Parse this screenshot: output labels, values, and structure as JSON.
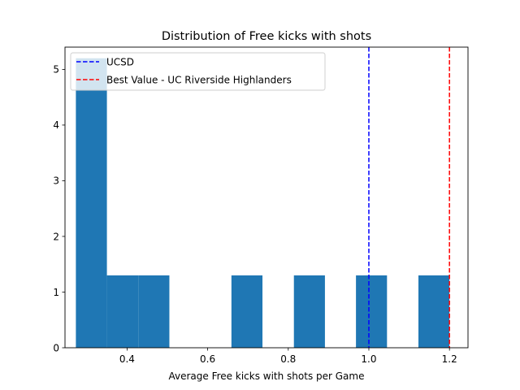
{
  "chart_data": {
    "type": "bar",
    "title": "Distribution of Free kicks with shots",
    "xlabel": "Average Free kicks with shots per Game",
    "ylabel": "",
    "xlim": [
      0.246,
      1.246
    ],
    "ylim": [
      0,
      5.4
    ],
    "xticks": [
      0.4,
      0.6,
      0.8,
      1.0,
      1.2
    ],
    "xtick_labels": [
      "0.4",
      "0.6",
      "0.8",
      "1.0",
      "1.2"
    ],
    "yticks": [
      0,
      1,
      2,
      3,
      4,
      5
    ],
    "ytick_labels": [
      "0",
      "1",
      "2",
      "3",
      "4",
      "5"
    ],
    "bar_color": "#1f77b4",
    "bins": [
      {
        "x0": 0.273,
        "x1": 0.35,
        "count": 5.2
      },
      {
        "x0": 0.35,
        "x1": 0.428,
        "count": 1.3
      },
      {
        "x0": 0.428,
        "x1": 0.505,
        "count": 1.3
      },
      {
        "x0": 0.505,
        "x1": 0.582,
        "count": 0
      },
      {
        "x0": 0.582,
        "x1": 0.659,
        "count": 0
      },
      {
        "x0": 0.659,
        "x1": 0.736,
        "count": 1.3
      },
      {
        "x0": 0.736,
        "x1": 0.814,
        "count": 0
      },
      {
        "x0": 0.814,
        "x1": 0.891,
        "count": 1.3
      },
      {
        "x0": 0.891,
        "x1": 0.968,
        "count": 0
      },
      {
        "x0": 0.968,
        "x1": 1.045,
        "count": 1.3
      },
      {
        "x0": 1.045,
        "x1": 1.123,
        "count": 0
      },
      {
        "x0": 1.123,
        "x1": 1.2,
        "count": 1.3
      }
    ],
    "reference_lines": [
      {
        "label": "UCSD",
        "x": 1.0,
        "color": "#0000ff",
        "style": "dashed"
      },
      {
        "label": "Best Value - UC Riverside Highlanders",
        "x": 1.2,
        "color": "#ff0000",
        "style": "dashed"
      }
    ],
    "legend": "top-left",
    "grid": false
  }
}
